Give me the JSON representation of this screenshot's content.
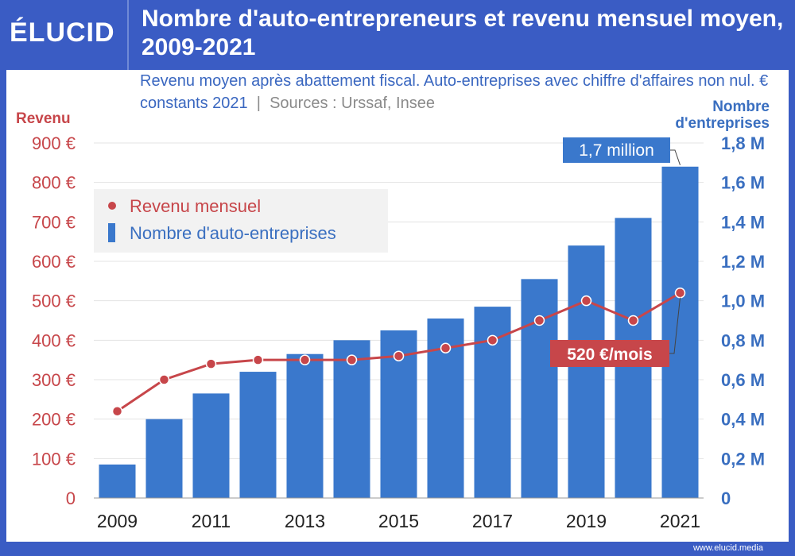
{
  "header": {
    "logo": "ÉLUCID",
    "title": "Nombre d'auto-entrepreneurs et revenu mensuel moyen, 2009-2021",
    "subtitle": "Revenu moyen après abattement fiscal. Auto-entreprises avec chiffre d'affaires non nul. € constants 2021",
    "sources": "Sources : Urssaf, Insee"
  },
  "footer": {
    "site": "www.elucid.media"
  },
  "colors": {
    "bar": "#3a78cc",
    "line": "#c7464a",
    "left_axis": "#c7464a",
    "right_axis": "#3a6fc0",
    "frame": "#3a5cc4"
  },
  "chart_data": {
    "type": "bar",
    "x": [
      2009,
      2010,
      2011,
      2012,
      2013,
      2014,
      2015,
      2016,
      2017,
      2018,
      2019,
      2020,
      2021
    ],
    "x_tick_labels": [
      "2009",
      "2011",
      "2013",
      "2015",
      "2017",
      "2019",
      "2021"
    ],
    "series": [
      {
        "name": "Nombre d'auto-entreprises",
        "type": "bar",
        "axis": "right",
        "values": [
          0.17,
          0.4,
          0.53,
          0.64,
          0.73,
          0.8,
          0.85,
          0.91,
          0.97,
          1.11,
          1.28,
          1.42,
          1.68
        ]
      },
      {
        "name": "Revenu mensuel",
        "type": "line",
        "axis": "left",
        "values": [
          220,
          300,
          340,
          350,
          350,
          350,
          360,
          380,
          400,
          450,
          500,
          450,
          520
        ]
      }
    ],
    "left_axis": {
      "label": "Revenu",
      "ylim": [
        0,
        900
      ],
      "tick_labels": [
        "0",
        "100 €",
        "200 €",
        "300 €",
        "400 €",
        "500 €",
        "600 €",
        "700 €",
        "800 €",
        "900 €"
      ]
    },
    "right_axis": {
      "label_lines": [
        "Nombre",
        "d'entreprises"
      ],
      "ylim": [
        0,
        1.8
      ],
      "tick_labels": [
        "0",
        "0,2 M",
        "0,4 M",
        "0,6 M",
        "0,8 M",
        "1,0 M",
        "1,2 M",
        "1,4 M",
        "1,6 M",
        "1,8 M"
      ]
    },
    "annotations": [
      {
        "text": "1,7 million",
        "series": "Nombre d'auto-entreprises",
        "x": 2021
      },
      {
        "text": "520 €/mois",
        "series": "Revenu mensuel",
        "x": 2021
      }
    ],
    "legend": {
      "position": "top-left"
    },
    "grid": true
  }
}
